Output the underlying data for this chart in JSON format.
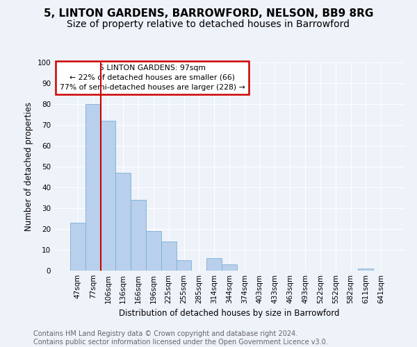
{
  "title1": "5, LINTON GARDENS, BARROWFORD, NELSON, BB9 8RG",
  "title2": "Size of property relative to detached houses in Barrowford",
  "xlabel": "Distribution of detached houses by size in Barrowford",
  "ylabel": "Number of detached properties",
  "tick_labels": [
    "47sqm",
    "77sqm",
    "106sqm",
    "136sqm",
    "166sqm",
    "196sqm",
    "225sqm",
    "255sqm",
    "285sqm",
    "314sqm",
    "344sqm",
    "374sqm",
    "403sqm",
    "433sqm",
    "463sqm",
    "493sqm",
    "522sqm",
    "552sqm",
    "582sqm",
    "611sqm",
    "641sqm"
  ],
  "values": [
    23,
    80,
    72,
    47,
    34,
    19,
    14,
    5,
    0,
    6,
    3,
    0,
    0,
    0,
    0,
    0,
    0,
    0,
    0,
    1,
    0
  ],
  "bar_color": "#b8d0eb",
  "bar_edge_color": "#7aaed6",
  "vline_color": "#cc0000",
  "annotation_box_text": "5 LINTON GARDENS: 97sqm\n← 22% of detached houses are smaller (66)\n77% of semi-detached houses are larger (228) →",
  "annotation_box_color": "#cc0000",
  "ylim": [
    0,
    100
  ],
  "yticks": [
    0,
    10,
    20,
    30,
    40,
    50,
    60,
    70,
    80,
    90,
    100
  ],
  "footnote": "Contains HM Land Registry data © Crown copyright and database right 2024.\nContains public sector information licensed under the Open Government Licence v3.0.",
  "bg_color": "#eef2f9",
  "grid_color": "#ffffff",
  "title_fontsize": 11,
  "subtitle_fontsize": 10,
  "axis_label_fontsize": 8.5,
  "tick_fontsize": 7.5,
  "footnote_fontsize": 7
}
